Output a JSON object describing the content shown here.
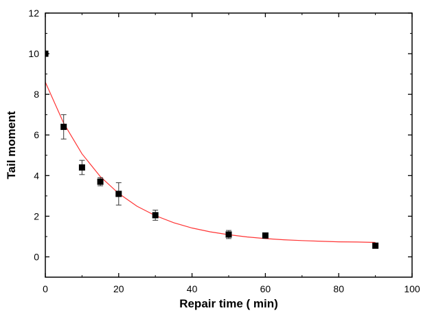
{
  "chart_data": {
    "type": "scatter",
    "title": "",
    "xlabel": "Repair time ( min)",
    "ylabel": "Tail moment",
    "xlim": [
      0,
      100
    ],
    "ylim": [
      -1,
      12
    ],
    "xticks": [
      0,
      20,
      40,
      60,
      80,
      100
    ],
    "yticks": [
      0,
      2,
      4,
      6,
      8,
      10,
      12
    ],
    "grid": false,
    "legend": "none",
    "series": [
      {
        "type": "scatter",
        "color": "#000000",
        "x": [
          0,
          5,
          10,
          15,
          20,
          30,
          50,
          60,
          90
        ],
        "y": [
          10.0,
          6.4,
          4.4,
          3.7,
          3.1,
          2.05,
          1.1,
          1.05,
          0.55
        ],
        "err": [
          0,
          0.6,
          0.35,
          0.2,
          0.55,
          0.25,
          0.2,
          0,
          0
        ]
      },
      {
        "type": "line",
        "color": "#ff3333",
        "fit": "exponential",
        "x": [
          0,
          5,
          10,
          15,
          20,
          25,
          30,
          35,
          40,
          45,
          50,
          55,
          60,
          65,
          70,
          75,
          80,
          85,
          90
        ],
        "y": [
          8.6,
          6.58,
          5.07,
          3.95,
          3.12,
          2.49,
          2.03,
          1.68,
          1.42,
          1.23,
          1.09,
          0.98,
          0.9,
          0.84,
          0.8,
          0.77,
          0.74,
          0.73,
          0.71
        ]
      }
    ]
  }
}
